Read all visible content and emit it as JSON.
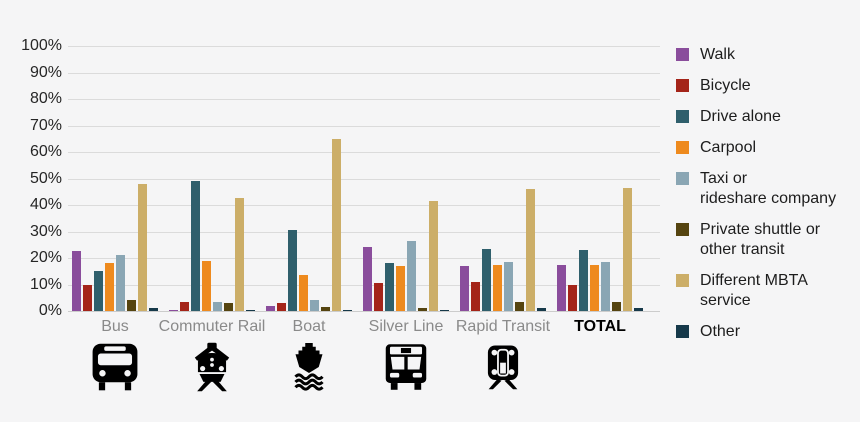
{
  "chart_data": {
    "type": "bar",
    "title": "",
    "xlabel": "",
    "ylabel": "",
    "ylim": [
      0,
      100
    ],
    "grid": true,
    "legend_position": "right",
    "yticks": [
      {
        "value": 0,
        "label": "0%"
      },
      {
        "value": 10,
        "label": "10%"
      },
      {
        "value": 20,
        "label": "20%"
      },
      {
        "value": 30,
        "label": "30%"
      },
      {
        "value": 40,
        "label": "40%"
      },
      {
        "value": 50,
        "label": "50%"
      },
      {
        "value": 60,
        "label": "60%"
      },
      {
        "value": 70,
        "label": "70%"
      },
      {
        "value": 80,
        "label": "80%"
      },
      {
        "value": 90,
        "label": "90%"
      },
      {
        "value": 100,
        "label": "100%"
      }
    ],
    "groups": [
      {
        "label": "Bus",
        "icon": "bus-icon",
        "bold": false
      },
      {
        "label": "Commuter Rail",
        "icon": "commuter-rail-icon",
        "bold": false
      },
      {
        "label": "Boat",
        "icon": "boat-icon",
        "bold": false
      },
      {
        "label": "Silver Line",
        "icon": "silver-line-bus-icon",
        "bold": false
      },
      {
        "label": "Rapid Transit",
        "icon": "rapid-transit-icon",
        "bold": false
      },
      {
        "label": "TOTAL",
        "icon": "",
        "bold": true
      }
    ],
    "categories": [
      "Bus",
      "Commuter Rail",
      "Boat",
      "Silver Line",
      "Rapid Transit",
      "TOTAL"
    ],
    "series": [
      {
        "name": "Walk",
        "label_lines": [
          "Walk"
        ],
        "color": "#8a4d9c",
        "values": [
          22.5,
          0.5,
          2,
          24,
          17,
          17.5
        ]
      },
      {
        "name": "Bicycle",
        "label_lines": [
          "Bicycle"
        ],
        "color": "#a42419",
        "values": [
          10,
          3.5,
          3,
          10.5,
          11,
          10
        ]
      },
      {
        "name": "Drive alone",
        "label_lines": [
          "Drive alone"
        ],
        "color": "#2f5f6c",
        "values": [
          15,
          49,
          30.5,
          18,
          23.5,
          23
        ]
      },
      {
        "name": "Carpool",
        "label_lines": [
          "Carpool"
        ],
        "color": "#ee8a1e",
        "values": [
          18,
          19,
          13.5,
          17,
          17.5,
          17.5
        ]
      },
      {
        "name": "Taxi or rideshare company",
        "label_lines": [
          "Taxi or",
          "rideshare company"
        ],
        "color": "#8aa6b4",
        "values": [
          21,
          3.5,
          4,
          26.5,
          18.5,
          18.5
        ]
      },
      {
        "name": "Private shuttle or other transit",
        "label_lines": [
          "Private shuttle or",
          "other transit"
        ],
        "color": "#554410",
        "values": [
          4,
          3,
          1.5,
          1,
          3.5,
          3.5
        ]
      },
      {
        "name": "Different MBTA service",
        "label_lines": [
          "Different MBTA service"
        ],
        "color": "#ccae68",
        "values": [
          48,
          42.5,
          65,
          41.5,
          46,
          46.5
        ]
      },
      {
        "name": "Other",
        "label_lines": [
          "Other"
        ],
        "color": "#16394a",
        "values": [
          1,
          0.5,
          0.5,
          0.5,
          1,
          1
        ]
      }
    ]
  },
  "colors": {
    "background": "#f5f5f6",
    "gridline": "#dbdbdb",
    "tick_text": "#262626",
    "category_text": "#8a8a8a",
    "total_text": "#000000",
    "icon": "#000000"
  }
}
